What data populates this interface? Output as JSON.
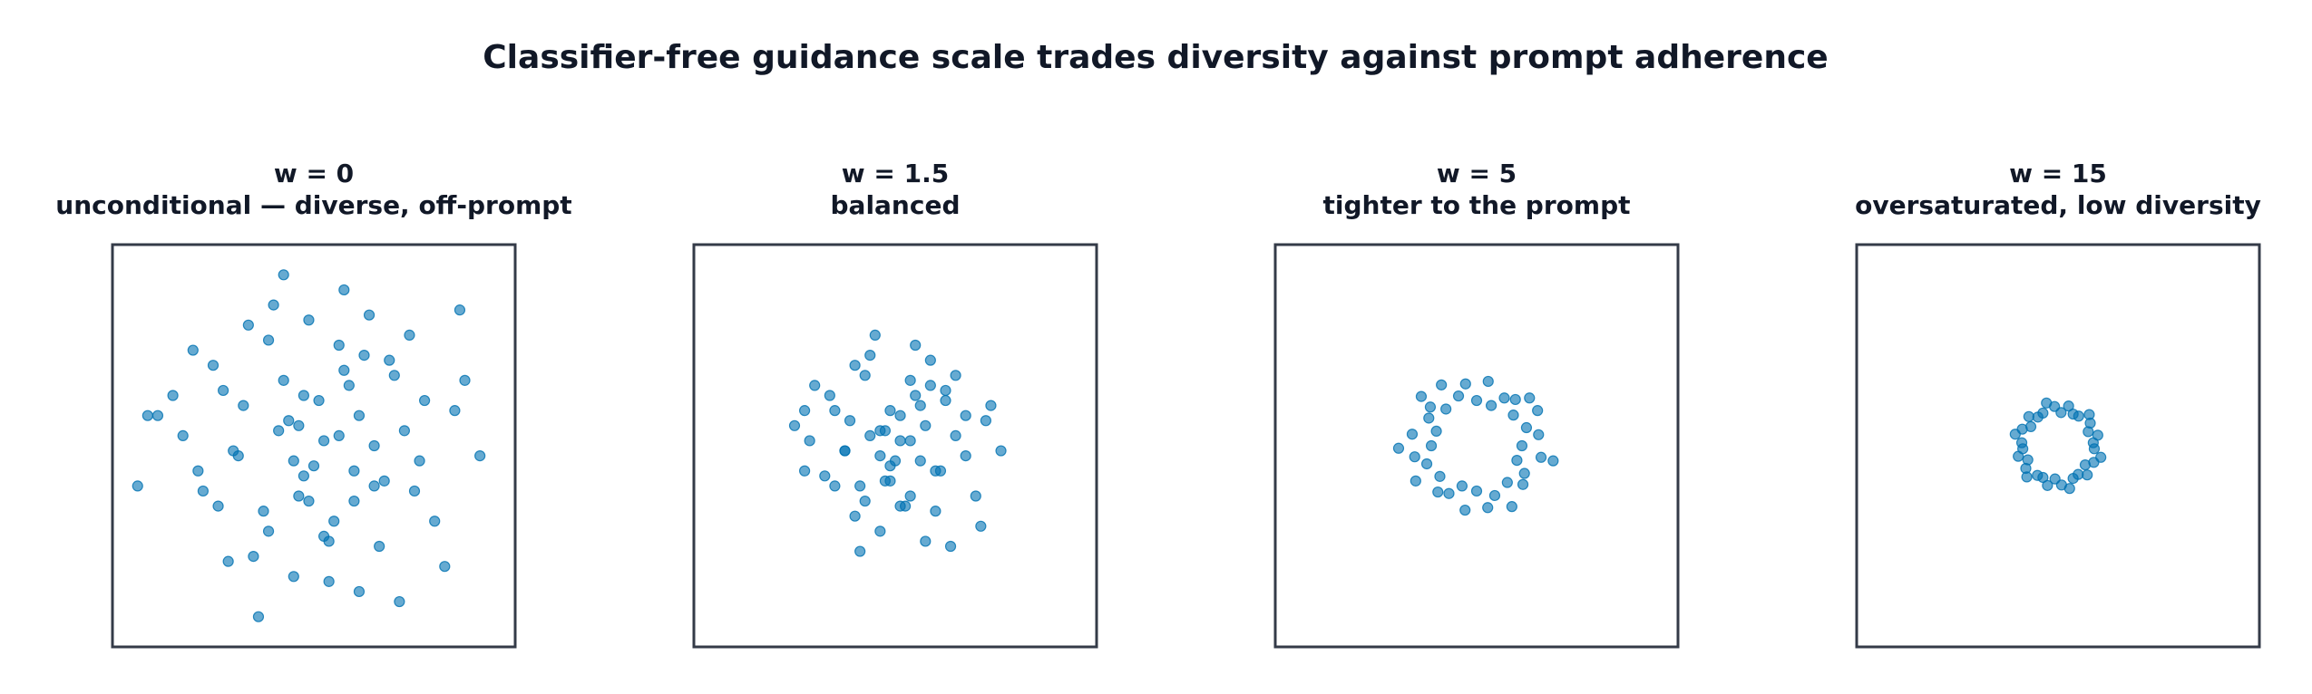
{
  "title": "Classifier-free guidance scale trades diversity against prompt adherence",
  "chart_data": [
    {
      "type": "scatter",
      "title": "w = 0",
      "subtitle": "unconditional — diverse, off-prompt",
      "color": "#0072b2",
      "xlim": [
        -4,
        4
      ],
      "ylim": [
        -4,
        4
      ],
      "x": [
        -0.3,
        1.2,
        -1.8,
        0.5,
        2.1,
        -0.9,
        0.1,
        -2.6,
        1.6,
        -0.4,
        0.8,
        -1.3,
        2.8,
        -0.1,
        0.6,
        -2.2,
        1.0,
        -0.7,
        0.3,
        -1.5,
        1.9,
        -0.2,
        -3.1,
        0.9,
        -1.0,
        2.4,
        0.2,
        -0.6,
        1.4,
        -2.0,
        0.0,
        3.3,
        -1.2,
        0.7,
        -0.5,
        1.7,
        -3.5,
        0.4,
        -0.8,
        2.2,
        -1.6,
        1.1,
        -0.3,
        0.5,
        -2.4,
        1.3,
        -1.1,
        0.9,
        3.0,
        -0.2,
        -1.9,
        0.6,
        1.8,
        -0.9,
        2.6,
        -2.8,
        0.2,
        -0.4,
        1.5,
        -1.4,
        0.8,
        -0.1,
        -2.3,
        2.0,
        0.3,
        -0.6,
        1.2,
        -3.3,
        2.9,
        -1.7
      ],
      "y": [
        0.4,
        -0.8,
        1.1,
        2.0,
        -0.3,
        -1.7,
        0.9,
        0.2,
        1.4,
        -2.6,
        -0.5,
        2.4,
        0.7,
        -1.1,
        3.1,
        -0.9,
        1.8,
        0.3,
        -1.9,
        -0.2,
        2.2,
        1.0,
        0.6,
        -2.9,
        -1.3,
        -1.5,
        0.1,
        3.4,
        -0.7,
        1.6,
        -0.4,
        -0.2,
        -2.2,
        1.2,
        0.5,
        -3.1,
        -0.8,
        -1.5,
        2.8,
        0.9,
        -0.1,
        2.6,
        -1.0,
        0.2,
        1.9,
        -2.0,
        -3.4,
        0.6,
        1.3,
        -0.6,
        -1.2,
        1.5,
        0.3,
        2.1,
        -2.4,
        1.0,
        -1.8,
        -0.3,
        1.7,
        0.8,
        -1.1,
        2.5,
        -0.5,
        -0.9,
        -2.7,
        1.3,
        0.0,
        0.6,
        2.7,
        -2.3
      ]
    },
    {
      "type": "scatter",
      "title": "w = 1.5",
      "subtitle": "balanced",
      "color": "#0072b2",
      "xlim": [
        -4,
        4
      ],
      "ylim": [
        -4,
        4
      ],
      "x": [
        -0.2,
        0.8,
        -1.2,
        0.3,
        1.4,
        -0.6,
        0.1,
        -1.7,
        1.0,
        -0.3,
        0.5,
        -0.8,
        1.8,
        -0.1,
        0.4,
        -1.4,
        0.7,
        -0.5,
        0.2,
        -1.0,
        1.2,
        -0.1,
        -2.0,
        0.6,
        -0.7,
        1.6,
        0.1,
        -0.4,
        0.9,
        -1.3,
        0.0,
        2.1,
        -0.8,
        0.5,
        -0.3,
        1.1,
        -1.8,
        0.3,
        -0.5,
        1.4,
        -1.0,
        0.7,
        -0.2,
        0.3,
        -1.6,
        0.8,
        -0.7,
        0.6,
        1.9,
        -0.1,
        -1.2,
        0.4,
        1.2,
        -0.6,
        1.7,
        -1.8,
        0.1,
        -0.3,
        1.0,
        -0.9
      ],
      "y": [
        0.3,
        -0.5,
        0.7,
        1.3,
        -0.2,
        -1.1,
        0.6,
        0.1,
        0.9,
        -1.7,
        -0.3,
        1.6,
        0.5,
        -0.7,
        2.0,
        -0.6,
        1.2,
        0.2,
        -1.2,
        -0.1,
        1.4,
        0.7,
        0.4,
        -1.9,
        -0.8,
        -1.0,
        0.1,
        2.2,
        -0.5,
        1.0,
        -0.3,
        -0.1,
        -1.4,
        0.8,
        0.3,
        -2.0,
        -0.5,
        -1.0,
        1.8,
        0.6,
        -0.1,
        1.7,
        -0.7,
        0.1,
        1.2,
        -1.3,
        -2.1,
        0.4,
        0.8,
        -0.4,
        -0.8,
        1.0,
        0.2,
        1.4,
        -1.6,
        0.7,
        -1.2,
        -0.2,
        1.1,
        0.5
      ]
    },
    {
      "type": "scatter",
      "title": "w = 5",
      "subtitle": "tighter to the prompt",
      "color": "#0072b2",
      "xlim": [
        -4,
        4
      ],
      "ylim": [
        -4,
        4
      ],
      "x": [
        0.9,
        1.23,
        0.99,
        1.21,
        0.73,
        0.77,
        0.55,
        0.29,
        0.23,
        0.0,
        -0.22,
        -0.36,
        -0.7,
        -0.61,
        -0.92,
        -0.95,
        -0.8,
        -1.28,
        -0.9,
        -1.23,
        -0.99,
        -1.21,
        -0.73,
        -0.77,
        -0.55,
        -0.29,
        -0.23,
        0.0,
        0.22,
        0.36,
        0.7,
        0.61,
        0.92,
        0.95,
        0.8,
        1.28,
        -1.55,
        1.52,
        1.05,
        -1.1
      ],
      "y": [
        0.0,
        0.22,
        0.36,
        0.7,
        0.61,
        0.92,
        0.95,
        0.8,
        1.28,
        0.9,
        1.23,
        0.99,
        1.21,
        0.73,
        0.77,
        0.55,
        0.29,
        0.23,
        0.0,
        -0.22,
        -0.36,
        -0.7,
        -0.61,
        -0.92,
        -0.95,
        -0.8,
        -1.28,
        -0.9,
        -1.23,
        -0.99,
        -1.21,
        -0.73,
        -0.77,
        -0.55,
        -0.29,
        -0.23,
        -0.05,
        -0.3,
        0.95,
        0.98
      ]
    },
    {
      "type": "scatter",
      "title": "w = 15",
      "subtitle": "oversaturated, low diversity",
      "color": "#0072b2",
      "xlim": [
        -4,
        4
      ],
      "ylim": [
        -4,
        4
      ],
      "x": [
        0.7,
        0.79,
        0.6,
        0.64,
        0.62,
        0.41,
        0.3,
        0.21,
        0.06,
        -0.07,
        -0.23,
        -0.3,
        -0.4,
        -0.58,
        -0.54,
        -0.71,
        -0.85,
        -0.72,
        -0.7,
        -0.79,
        -0.6,
        -0.64,
        -0.62,
        -0.41,
        -0.3,
        -0.21,
        -0.06,
        0.07,
        0.23,
        0.3,
        0.4,
        0.58,
        0.54,
        0.71,
        0.85,
        0.72
      ],
      "y": [
        0.06,
        0.21,
        0.28,
        0.45,
        0.62,
        0.59,
        0.63,
        0.79,
        0.66,
        0.78,
        0.85,
        0.65,
        0.57,
        0.58,
        0.38,
        0.33,
        0.23,
        0.06,
        -0.06,
        -0.21,
        -0.28,
        -0.45,
        -0.62,
        -0.59,
        -0.63,
        -0.79,
        -0.66,
        -0.78,
        -0.85,
        -0.65,
        -0.57,
        -0.58,
        -0.38,
        -0.33,
        -0.23,
        -0.06
      ]
    }
  ]
}
